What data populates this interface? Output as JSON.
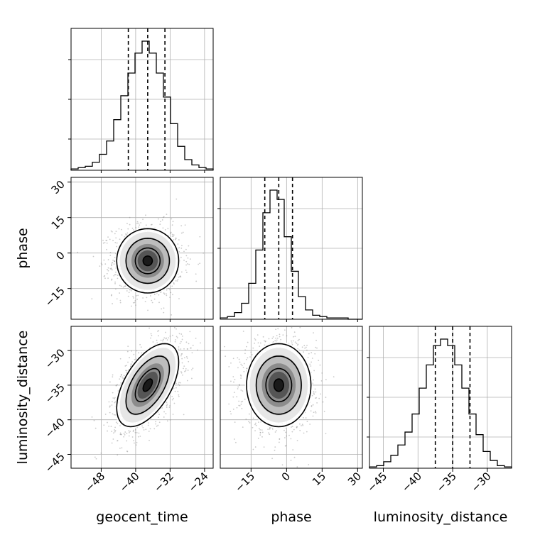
{
  "chart_data": {
    "type": "corner",
    "parameters": [
      "geocent_time",
      "phase",
      "luminosity_distance"
    ],
    "axis_labels": {
      "x": [
        "geocent_time",
        "phase",
        "luminosity_distance"
      ],
      "y": [
        "phase",
        "luminosity_distance"
      ]
    },
    "ranges": {
      "geocent_time": [
        -55,
        -22
      ],
      "phase": [
        -28,
        32
      ],
      "luminosity_distance": [
        -47,
        -26.5
      ]
    },
    "ticks": {
      "geocent_time": [
        -48,
        -40,
        -32,
        -24
      ],
      "phase": [
        -15,
        0,
        15,
        30
      ],
      "luminosity_distance": [
        -45,
        -40,
        -35,
        -30
      ]
    },
    "tick_labels": {
      "geocent_time": [
        "−48",
        "−40",
        "−32",
        "−24"
      ],
      "phase": [
        "−15",
        "0",
        "15",
        "30"
      ],
      "luminosity_distance": [
        "−45",
        "−40",
        "−35",
        "−30"
      ],
      "phase_y": [
        "30",
        "15",
        "0",
        "−15"
      ],
      "luminosity_distance_y": [
        "−30",
        "−35",
        "−40",
        "−45"
      ]
    },
    "quantiles": {
      "geocent_time": [
        -41.7,
        -37.2,
        -33.2
      ],
      "phase": [
        -9.2,
        -3.3,
        2.5
      ],
      "luminosity_distance": [
        -37.5,
        -35.0,
        -32.5
      ]
    },
    "histograms": {
      "geocent_time": {
        "edges_start": -55,
        "bin_width": 1.65,
        "counts": [
          1,
          2,
          3,
          6,
          12,
          22,
          38,
          56,
          73,
          88,
          97,
          88,
          73,
          55,
          35,
          18,
          8,
          4,
          2,
          1
        ]
      },
      "phase": {
        "edges_start": -28,
        "bin_width": 3,
        "counts": [
          1,
          2,
          5,
          12,
          27,
          52,
          80,
          97,
          90,
          62,
          36,
          17,
          7,
          3,
          2,
          1,
          1,
          1,
          0,
          0
        ]
      },
      "luminosity_distance": {
        "edges_start": -47,
        "bin_width": 1.025,
        "counts": [
          1,
          2,
          5,
          10,
          18,
          28,
          42,
          62,
          80,
          95,
          100,
          95,
          80,
          62,
          42,
          26,
          13,
          6,
          2,
          1
        ]
      }
    },
    "pairs": [
      {
        "x": "geocent_time",
        "y": "phase",
        "center": [
          -37.2,
          -3.3
        ],
        "sd": [
          3.6,
          6.8
        ],
        "corr": 0.0
      },
      {
        "x": "geocent_time",
        "y": "luminosity_distance",
        "center": [
          -37.2,
          -35.0
        ],
        "sd": [
          3.6,
          3.0
        ],
        "corr": 0.55
      },
      {
        "x": "phase",
        "y": "luminosity_distance",
        "center": [
          -3.3,
          -35.0
        ],
        "sd": [
          6.8,
          3.0
        ],
        "corr": 0.0
      }
    ],
    "grid": true,
    "legend": "none"
  }
}
